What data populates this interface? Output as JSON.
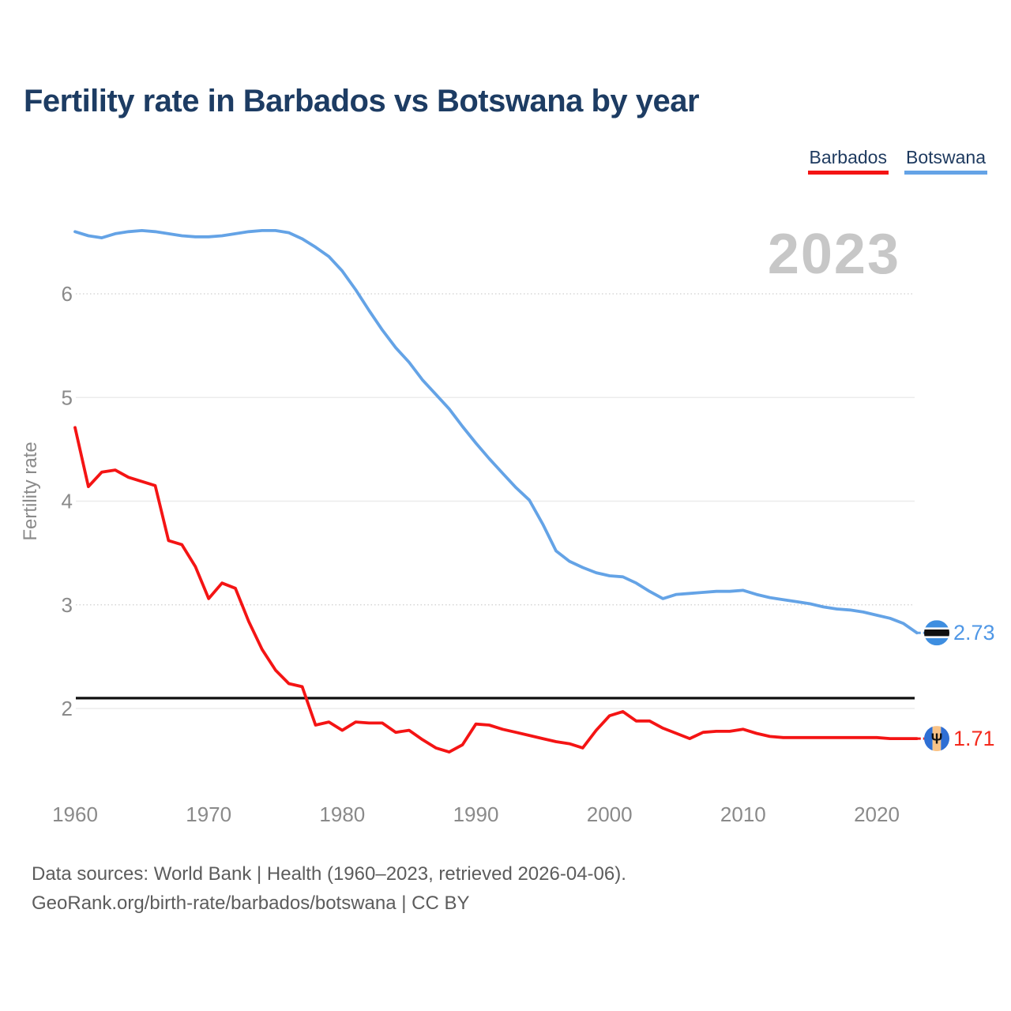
{
  "header": {
    "title": "Fertility rate in Barbados vs Botswana by year"
  },
  "legend": {
    "items": [
      {
        "label": "Barbados",
        "color": "#f41414"
      },
      {
        "label": "Botswana",
        "color": "#64a3e6"
      }
    ]
  },
  "watermark": "2023",
  "chart_data": {
    "type": "line",
    "title": "Fertility rate in Barbados vs Botswana by year",
    "ylabel": "Fertility rate",
    "xlabel": "",
    "x_ticks": [
      1960,
      1970,
      1980,
      1990,
      2000,
      2010,
      2020
    ],
    "y_ticks": [
      2,
      3,
      4,
      5,
      6
    ],
    "xlim": [
      1960,
      2023
    ],
    "ylim": [
      1.4,
      6.85
    ],
    "grid": true,
    "legend_position": "top-right",
    "reference_line": {
      "value": 2.1,
      "color": "#111111"
    },
    "x": [
      1960,
      1961,
      1962,
      1963,
      1964,
      1965,
      1966,
      1967,
      1968,
      1969,
      1970,
      1971,
      1972,
      1973,
      1974,
      1975,
      1976,
      1977,
      1978,
      1979,
      1980,
      1981,
      1982,
      1983,
      1984,
      1985,
      1986,
      1987,
      1988,
      1989,
      1990,
      1991,
      1992,
      1993,
      1994,
      1995,
      1996,
      1997,
      1998,
      1999,
      2000,
      2001,
      2002,
      2003,
      2004,
      2005,
      2006,
      2007,
      2008,
      2009,
      2010,
      2011,
      2012,
      2013,
      2014,
      2015,
      2016,
      2017,
      2018,
      2019,
      2020,
      2021,
      2022,
      2023
    ],
    "series": [
      {
        "name": "Barbados",
        "color": "#f41414",
        "end_label": "1.71",
        "values": [
          4.71,
          4.14,
          4.28,
          4.3,
          4.23,
          4.19,
          4.15,
          3.62,
          3.58,
          3.37,
          3.06,
          3.21,
          3.16,
          2.84,
          2.57,
          2.37,
          2.24,
          2.21,
          1.84,
          1.87,
          1.79,
          1.87,
          1.86,
          1.86,
          1.77,
          1.79,
          1.7,
          1.62,
          1.58,
          1.65,
          1.85,
          1.84,
          1.8,
          1.77,
          1.74,
          1.71,
          1.68,
          1.66,
          1.62,
          1.79,
          1.93,
          1.97,
          1.88,
          1.88,
          1.81,
          1.76,
          1.71,
          1.77,
          1.78,
          1.78,
          1.8,
          1.76,
          1.73,
          1.72,
          1.72,
          1.72,
          1.72,
          1.72,
          1.72,
          1.72,
          1.72,
          1.71,
          1.71,
          1.71
        ]
      },
      {
        "name": "Botswana",
        "color": "#64a3e6",
        "end_label": "2.73",
        "values": [
          6.6,
          6.56,
          6.54,
          6.58,
          6.6,
          6.61,
          6.6,
          6.58,
          6.56,
          6.55,
          6.55,
          6.56,
          6.58,
          6.6,
          6.61,
          6.61,
          6.59,
          6.53,
          6.45,
          6.36,
          6.22,
          6.04,
          5.84,
          5.65,
          5.48,
          5.34,
          5.17,
          5.03,
          4.89,
          4.72,
          4.56,
          4.41,
          4.27,
          4.13,
          4.01,
          3.78,
          3.52,
          3.42,
          3.36,
          3.31,
          3.28,
          3.27,
          3.21,
          3.13,
          3.06,
          3.1,
          3.11,
          3.12,
          3.13,
          3.13,
          3.14,
          3.1,
          3.07,
          3.05,
          3.03,
          3.01,
          2.98,
          2.96,
          2.95,
          2.93,
          2.9,
          2.87,
          2.82,
          2.73
        ]
      }
    ]
  },
  "footer": {
    "line1": "Data sources: World Bank | Health (1960–2023, retrieved 2026-04-06).",
    "line2": "GeoRank.org/birth-rate/barbados/botswana | CC BY"
  }
}
